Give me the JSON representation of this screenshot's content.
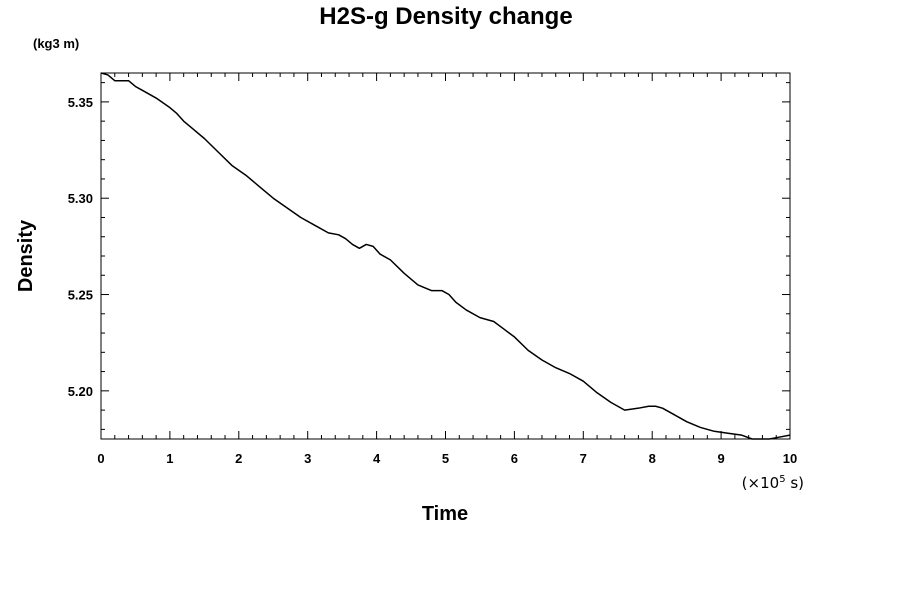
{
  "chart_data": {
    "type": "line",
    "title": "H2S-g Density change",
    "xlabel": "Time",
    "ylabel": "Density",
    "y_unit": "(kg3 m)",
    "x_scale_note": {
      "prefix": "(×10",
      "exponent": "5",
      "suffix": " s)"
    },
    "xlim": [
      0,
      10
    ],
    "ylim": [
      5.175,
      5.365
    ],
    "x_ticks": [
      "0",
      "1",
      "2",
      "3",
      "4",
      "5",
      "6",
      "7",
      "8",
      "9",
      "10"
    ],
    "y_ticks": [
      "5.20",
      "5.25",
      "5.30",
      "5.35"
    ],
    "grid": false,
    "legend": "none",
    "line_color": "#000000",
    "series": [
      {
        "x": [
          0.0,
          0.1,
          0.2,
          0.3,
          0.4,
          0.5,
          0.6,
          0.8,
          1.0,
          1.1,
          1.2,
          1.3,
          1.5,
          1.7,
          1.9,
          2.1,
          2.3,
          2.5,
          2.7,
          2.9,
          3.1,
          3.3,
          3.45,
          3.55,
          3.65,
          3.75,
          3.85,
          3.95,
          4.05,
          4.2,
          4.4,
          4.6,
          4.8,
          4.95,
          5.05,
          5.15,
          5.3,
          5.5,
          5.7,
          5.85,
          6.0,
          6.2,
          6.4,
          6.6,
          6.8,
          7.0,
          7.2,
          7.4,
          7.6,
          7.8,
          7.95,
          8.05,
          8.15,
          8.3,
          8.5,
          8.7,
          8.9,
          9.1,
          9.3,
          9.45,
          9.55,
          9.7,
          9.85,
          10.0
        ],
        "y": [
          5.365,
          5.364,
          5.361,
          5.361,
          5.361,
          5.358,
          5.356,
          5.352,
          5.347,
          5.344,
          5.34,
          5.337,
          5.331,
          5.324,
          5.317,
          5.312,
          5.306,
          5.3,
          5.295,
          5.29,
          5.286,
          5.282,
          5.281,
          5.279,
          5.276,
          5.274,
          5.276,
          5.275,
          5.271,
          5.268,
          5.261,
          5.255,
          5.252,
          5.252,
          5.25,
          5.246,
          5.242,
          5.238,
          5.236,
          5.232,
          5.228,
          5.221,
          5.216,
          5.212,
          5.209,
          5.205,
          5.199,
          5.194,
          5.19,
          5.191,
          5.192,
          5.192,
          5.191,
          5.188,
          5.184,
          5.181,
          5.179,
          5.178,
          5.177,
          5.175,
          5.175,
          5.175,
          5.176,
          5.177
        ]
      }
    ]
  }
}
